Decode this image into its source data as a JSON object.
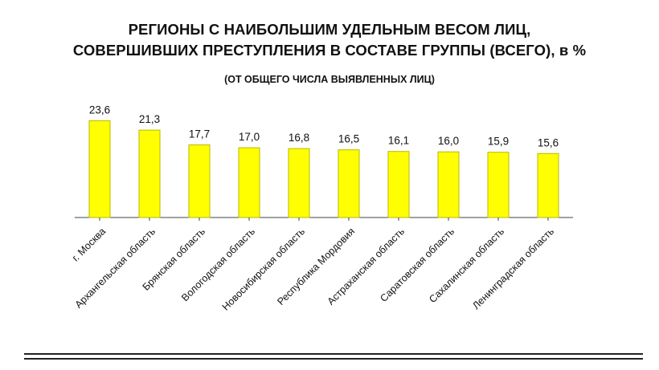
{
  "title": {
    "line1": "РЕГИОНЫ С НАИБОЛЬШИМ УДЕЛЬНЫМ ВЕСОМ ЛИЦ,",
    "line2": "СОВЕРШИВШИХ ПРЕСТУПЛЕНИЯ В СОСТАВЕ ГРУППЫ (ВСЕГО), в %"
  },
  "subtitle": "(ОТ ОБЩЕГО ЧИСЛА ВЫЯВЛЕННЫХ ЛИЦ)",
  "colors": {
    "bar_fill": "#ffff00",
    "bar_edge": "#b8b800",
    "axis": "#444444",
    "text": "#111111"
  },
  "chart_data": {
    "type": "bar",
    "title": "РЕГИОНЫ С НАИБОЛЬШИМ УДЕЛЬНЫМ ВЕСОМ ЛИЦ, СОВЕРШИВШИХ ПРЕСТУПЛЕНИЯ В СОСТАВЕ ГРУППЫ (ВСЕГО), в %",
    "subtitle": "(ОТ ОБЩЕГО ЧИСЛА ВЫЯВЛЕННЫХ ЛИЦ)",
    "categories": [
      "г. Москва",
      "Архангельская область",
      "Брянская область",
      "Вологодская область",
      "Новосибирская область",
      "Республика Мордовия",
      "Астраханская область",
      "Саратовская область",
      "Сахалинская область",
      "Ленинградская область"
    ],
    "values": [
      23.6,
      21.3,
      17.7,
      17.0,
      16.8,
      16.5,
      16.1,
      16.0,
      15.9,
      15.6
    ],
    "value_labels": [
      "23,6",
      "21,3",
      "17,7",
      "17,0",
      "16,8",
      "16,5",
      "16,1",
      "16,0",
      "15,9",
      "15,6"
    ],
    "xlabel": "",
    "ylabel": "",
    "ylim": [
      0,
      27
    ],
    "grid": false,
    "legend": "none",
    "tick_label_rotation": "-45deg"
  }
}
